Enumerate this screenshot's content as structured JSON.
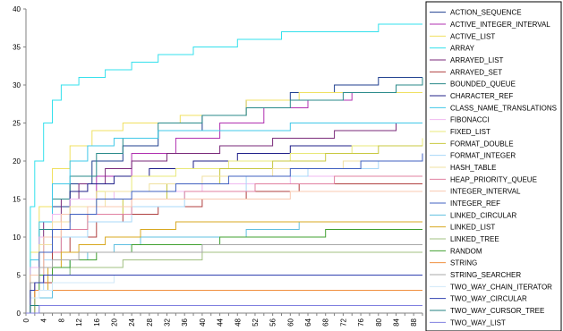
{
  "chart_data": {
    "type": "line",
    "title": "",
    "xlabel": "",
    "ylabel": "",
    "xlim": [
      0,
      90
    ],
    "ylim": [
      0,
      40
    ],
    "x_ticks": [
      "0",
      "4",
      "8",
      "12",
      "16",
      "20",
      "24",
      "28",
      "32",
      "36",
      "40",
      "44",
      "48",
      "52",
      "56",
      "60",
      "64",
      "68",
      "72",
      "76",
      "80",
      "84",
      "88"
    ],
    "y_ticks": [
      "0",
      "5",
      "10",
      "15",
      "20",
      "25",
      "30",
      "35",
      "40"
    ],
    "grid": false,
    "legend_position": "right",
    "series": [
      {
        "name": "ACTION_SEQUENCE",
        "color": "#1f3f8f",
        "points": [
          [
            0,
            0
          ],
          [
            1,
            5
          ],
          [
            3,
            10
          ],
          [
            6,
            14
          ],
          [
            10,
            17
          ],
          [
            15,
            20
          ],
          [
            22,
            22
          ],
          [
            30,
            24
          ],
          [
            40,
            26
          ],
          [
            50,
            28
          ],
          [
            60,
            29
          ],
          [
            70,
            30
          ],
          [
            80,
            31
          ],
          [
            90,
            31
          ]
        ]
      },
      {
        "name": "ACTIVE_INTEGER_INTERVAL",
        "color": "#b030b0",
        "points": [
          [
            0,
            0
          ],
          [
            1,
            4
          ],
          [
            3,
            8
          ],
          [
            6,
            12
          ],
          [
            10,
            15
          ],
          [
            16,
            18
          ],
          [
            24,
            21
          ],
          [
            34,
            23
          ],
          [
            44,
            25
          ],
          [
            54,
            27
          ],
          [
            64,
            28
          ],
          [
            74,
            29
          ],
          [
            90,
            29
          ]
        ]
      },
      {
        "name": "ACTIVE_LIST",
        "color": "#f0e060",
        "points": [
          [
            0,
            0
          ],
          [
            1,
            8
          ],
          [
            3,
            14
          ],
          [
            6,
            19
          ],
          [
            10,
            22
          ],
          [
            15,
            24
          ],
          [
            22,
            25
          ],
          [
            35,
            26
          ],
          [
            50,
            28
          ],
          [
            62,
            29
          ],
          [
            90,
            29
          ]
        ]
      },
      {
        "name": "ARRAY",
        "color": "#33e0ec",
        "points": [
          [
            0,
            0
          ],
          [
            1,
            14
          ],
          [
            2,
            20
          ],
          [
            4,
            25
          ],
          [
            6,
            28
          ],
          [
            8,
            30
          ],
          [
            12,
            31
          ],
          [
            18,
            32
          ],
          [
            24,
            33
          ],
          [
            30,
            34
          ],
          [
            38,
            35
          ],
          [
            48,
            36
          ],
          [
            58,
            37
          ],
          [
            70,
            37
          ],
          [
            80,
            38
          ],
          [
            90,
            38
          ]
        ]
      },
      {
        "name": "ARRAYED_LIST",
        "color": "#7a2a7a",
        "points": [
          [
            0,
            0
          ],
          [
            1,
            6
          ],
          [
            4,
            12
          ],
          [
            8,
            15
          ],
          [
            12,
            17
          ],
          [
            18,
            19
          ],
          [
            24,
            20
          ],
          [
            32,
            21
          ],
          [
            44,
            22
          ],
          [
            56,
            23
          ],
          [
            70,
            24
          ],
          [
            84,
            25
          ],
          [
            90,
            25
          ]
        ]
      },
      {
        "name": "ARRAYED_SET",
        "color": "#b04040",
        "points": [
          [
            0,
            0
          ],
          [
            2,
            4
          ],
          [
            6,
            8
          ],
          [
            10,
            10
          ],
          [
            16,
            12
          ],
          [
            22,
            13
          ],
          [
            30,
            14
          ],
          [
            40,
            15
          ],
          [
            50,
            16
          ],
          [
            62,
            17
          ],
          [
            90,
            17
          ]
        ]
      },
      {
        "name": "BOUNDED_QUEUE",
        "color": "#2a8a8a",
        "points": [
          [
            0,
            0
          ],
          [
            1,
            6
          ],
          [
            3,
            11
          ],
          [
            6,
            15
          ],
          [
            10,
            18
          ],
          [
            16,
            21
          ],
          [
            22,
            23
          ],
          [
            30,
            25
          ],
          [
            40,
            26
          ],
          [
            50,
            27
          ],
          [
            60,
            28
          ],
          [
            72,
            29
          ],
          [
            84,
            30
          ],
          [
            90,
            31
          ]
        ]
      },
      {
        "name": "CHARACTER_REF",
        "color": "#20208a",
        "points": [
          [
            0,
            0
          ],
          [
            1,
            5
          ],
          [
            3,
            10
          ],
          [
            6,
            13
          ],
          [
            10,
            16
          ],
          [
            14,
            17
          ],
          [
            20,
            18
          ],
          [
            28,
            19
          ],
          [
            38,
            20
          ],
          [
            48,
            21
          ],
          [
            60,
            22
          ],
          [
            90,
            22
          ]
        ]
      },
      {
        "name": "CLASS_NAME_TRANSLATIONS",
        "color": "#40c8e8",
        "points": [
          [
            0,
            0
          ],
          [
            1,
            7
          ],
          [
            3,
            12
          ],
          [
            6,
            17
          ],
          [
            10,
            20
          ],
          [
            14,
            22
          ],
          [
            20,
            23
          ],
          [
            30,
            24
          ],
          [
            44,
            24
          ],
          [
            60,
            25
          ],
          [
            90,
            25
          ]
        ]
      },
      {
        "name": "FIBONACCI",
        "color": "#f0b8f0",
        "points": [
          [
            0,
            0
          ],
          [
            1,
            6
          ],
          [
            3,
            10
          ],
          [
            6,
            13
          ],
          [
            10,
            15
          ],
          [
            20,
            16
          ],
          [
            40,
            17
          ],
          [
            60,
            18
          ],
          [
            90,
            18
          ]
        ]
      },
      {
        "name": "FIXED_LIST",
        "color": "#e8e878",
        "points": [
          [
            0,
            0
          ],
          [
            1,
            5
          ],
          [
            3,
            9
          ],
          [
            6,
            12
          ],
          [
            10,
            14
          ],
          [
            16,
            16
          ],
          [
            24,
            18
          ],
          [
            34,
            19
          ],
          [
            46,
            20
          ],
          [
            60,
            21
          ],
          [
            74,
            22
          ],
          [
            90,
            23
          ]
        ]
      },
      {
        "name": "FORMAT_DOUBLE",
        "color": "#c8c840",
        "points": [
          [
            0,
            0
          ],
          [
            1,
            4
          ],
          [
            4,
            8
          ],
          [
            8,
            11
          ],
          [
            14,
            13
          ],
          [
            22,
            15
          ],
          [
            32,
            17
          ],
          [
            44,
            19
          ],
          [
            56,
            20
          ],
          [
            68,
            21
          ],
          [
            80,
            22
          ],
          [
            90,
            22
          ]
        ]
      },
      {
        "name": "FORMAT_INTEGER",
        "color": "#a8d8f8",
        "points": [
          [
            0,
            0
          ],
          [
            1,
            3
          ],
          [
            4,
            7
          ],
          [
            8,
            10
          ],
          [
            14,
            12
          ],
          [
            24,
            14
          ],
          [
            36,
            16
          ],
          [
            50,
            18
          ],
          [
            64,
            19
          ],
          [
            80,
            20
          ],
          [
            90,
            20
          ]
        ]
      },
      {
        "name": "HASH_TABLE",
        "color": "#f0e0a0",
        "points": [
          [
            0,
            0
          ],
          [
            1,
            5
          ],
          [
            3,
            9
          ],
          [
            6,
            12
          ],
          [
            10,
            14
          ],
          [
            18,
            16
          ],
          [
            28,
            17
          ],
          [
            40,
            18
          ],
          [
            56,
            19
          ],
          [
            72,
            20
          ],
          [
            90,
            21
          ]
        ]
      },
      {
        "name": "HEAP_PRIORITY_QUEUE",
        "color": "#e080a0",
        "points": [
          [
            0,
            0
          ],
          [
            1,
            4
          ],
          [
            4,
            8
          ],
          [
            8,
            11
          ],
          [
            14,
            13
          ],
          [
            24,
            15
          ],
          [
            36,
            16
          ],
          [
            52,
            17
          ],
          [
            70,
            18
          ],
          [
            90,
            18
          ]
        ]
      },
      {
        "name": "INTEGER_INTERVAL",
        "color": "#f8c8b0",
        "points": [
          [
            0,
            0
          ],
          [
            1,
            5
          ],
          [
            4,
            10
          ],
          [
            8,
            13
          ],
          [
            14,
            14
          ],
          [
            24,
            15
          ],
          [
            40,
            15
          ],
          [
            60,
            16
          ],
          [
            90,
            16
          ]
        ]
      },
      {
        "name": "INTEGER_REF",
        "color": "#4060c0",
        "points": [
          [
            0,
            0
          ],
          [
            1,
            4
          ],
          [
            3,
            8
          ],
          [
            6,
            11
          ],
          [
            10,
            13
          ],
          [
            16,
            15
          ],
          [
            24,
            16
          ],
          [
            34,
            17
          ],
          [
            46,
            18
          ],
          [
            60,
            19
          ],
          [
            76,
            20
          ],
          [
            90,
            21
          ]
        ]
      },
      {
        "name": "LINKED_CIRCULAR",
        "color": "#60c0e0",
        "points": [
          [
            0,
            0
          ],
          [
            2,
            2
          ],
          [
            6,
            5
          ],
          [
            10,
            7
          ],
          [
            14,
            8
          ],
          [
            20,
            9
          ],
          [
            26,
            10
          ],
          [
            36,
            10
          ],
          [
            50,
            11
          ],
          [
            62,
            12
          ],
          [
            90,
            12
          ]
        ]
      },
      {
        "name": "LINKED_LIST",
        "color": "#d8a820",
        "points": [
          [
            0,
            0
          ],
          [
            2,
            3
          ],
          [
            5,
            6
          ],
          [
            8,
            8
          ],
          [
            12,
            9
          ],
          [
            18,
            10
          ],
          [
            26,
            11
          ],
          [
            34,
            12
          ],
          [
            50,
            12
          ],
          [
            90,
            12
          ]
        ]
      },
      {
        "name": "LINKED_TREE",
        "color": "#a0c080",
        "points": [
          [
            0,
            0
          ],
          [
            2,
            3
          ],
          [
            6,
            5
          ],
          [
            10,
            6
          ],
          [
            16,
            6
          ],
          [
            22,
            7
          ],
          [
            30,
            7
          ],
          [
            40,
            8
          ],
          [
            60,
            8
          ],
          [
            90,
            8
          ]
        ]
      },
      {
        "name": "RANDOM",
        "color": "#40a030",
        "points": [
          [
            0,
            0
          ],
          [
            1,
            3
          ],
          [
            3,
            5
          ],
          [
            6,
            6
          ],
          [
            10,
            7
          ],
          [
            16,
            8
          ],
          [
            24,
            9
          ],
          [
            34,
            9
          ],
          [
            44,
            10
          ],
          [
            56,
            10
          ],
          [
            68,
            11
          ],
          [
            80,
            11
          ],
          [
            90,
            11
          ]
        ]
      },
      {
        "name": "STRING",
        "color": "#f09040",
        "points": [
          [
            0,
            0
          ],
          [
            1,
            2
          ],
          [
            2,
            3
          ],
          [
            90,
            3
          ]
        ]
      },
      {
        "name": "STRING_SEARCHER",
        "color": "#a8a8a8",
        "points": [
          [
            0,
            0
          ],
          [
            1,
            4
          ],
          [
            3,
            6
          ],
          [
            6,
            7
          ],
          [
            12,
            8
          ],
          [
            24,
            8
          ],
          [
            40,
            9
          ],
          [
            60,
            9
          ],
          [
            90,
            9
          ]
        ]
      },
      {
        "name": "TWO_WAY_CHAIN_ITERATOR",
        "color": "#d0e8f8",
        "points": [
          [
            0,
            0
          ],
          [
            1,
            2
          ],
          [
            3,
            3
          ],
          [
            6,
            4
          ],
          [
            10,
            4
          ],
          [
            20,
            5
          ],
          [
            40,
            5
          ],
          [
            60,
            5
          ],
          [
            90,
            5
          ]
        ]
      },
      {
        "name": "TWO_WAY_CIRCULAR",
        "color": "#3040b0",
        "points": [
          [
            0,
            0
          ],
          [
            1,
            3
          ],
          [
            2,
            4
          ],
          [
            4,
            5
          ],
          [
            90,
            5
          ]
        ]
      },
      {
        "name": "TWO_WAY_CURSOR_TREE",
        "color": "#208080",
        "points": [
          [
            0,
            0
          ],
          [
            1,
            1
          ],
          [
            2,
            1
          ],
          [
            90,
            1
          ]
        ]
      },
      {
        "name": "TWO_WAY_LIST",
        "color": "#8080e0",
        "points": [
          [
            0,
            0
          ],
          [
            2,
            0
          ],
          [
            3,
            1
          ],
          [
            90,
            1
          ]
        ]
      }
    ]
  }
}
